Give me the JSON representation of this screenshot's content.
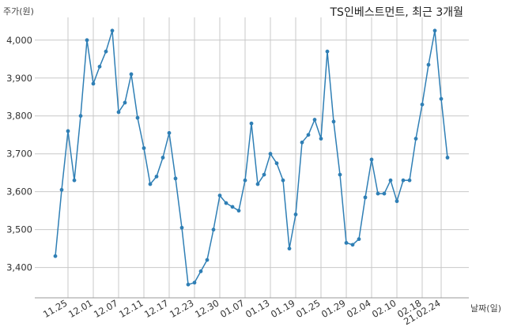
{
  "chart_data": {
    "type": "line",
    "title": "TS인베스트먼트, 최근 3개월",
    "ylabel": "주가(원)",
    "xlabel": "날짜(일)",
    "ylim": [
      3320,
      4060
    ],
    "yticks": [
      3400,
      3500,
      3600,
      3700,
      3800,
      3900,
      4000
    ],
    "ytick_labels": [
      "3,400",
      "3,500",
      "3,600",
      "3,700",
      "3,800",
      "3,900",
      "4,000"
    ],
    "xtick_labels": [
      "11.25",
      "12.01",
      "12.07",
      "12.11",
      "12.17",
      "12.23",
      "12.30",
      "01.07",
      "01.13",
      "01.19",
      "01.25",
      "01.29",
      "02.04",
      "02.10",
      "02.18",
      "21.02.24"
    ],
    "xtick_indices": [
      2,
      6,
      10,
      14,
      18,
      22,
      26,
      30,
      34,
      38,
      42,
      46,
      50,
      54,
      58,
      61
    ],
    "series": [
      {
        "color": "#2f7fb5",
        "values": [
          3430,
          3605,
          3760,
          3630,
          3800,
          4000,
          3885,
          3930,
          3970,
          4025,
          3810,
          3835,
          3910,
          3795,
          3715,
          3620,
          3640,
          3690,
          3755,
          3635,
          3505,
          3355,
          3360,
          3390,
          3420,
          3500,
          3590,
          3570,
          3560,
          3550,
          3630,
          3780,
          3620,
          3645,
          3700,
          3675,
          3630,
          3450,
          3540,
          3730,
          3750,
          3790,
          3740,
          3970,
          3785,
          3645,
          3465,
          3460,
          3475,
          3585,
          3685,
          3595,
          3595,
          3630,
          3575,
          3630,
          3630,
          3740,
          3830,
          3935,
          4025,
          3845,
          3690
        ]
      }
    ]
  }
}
